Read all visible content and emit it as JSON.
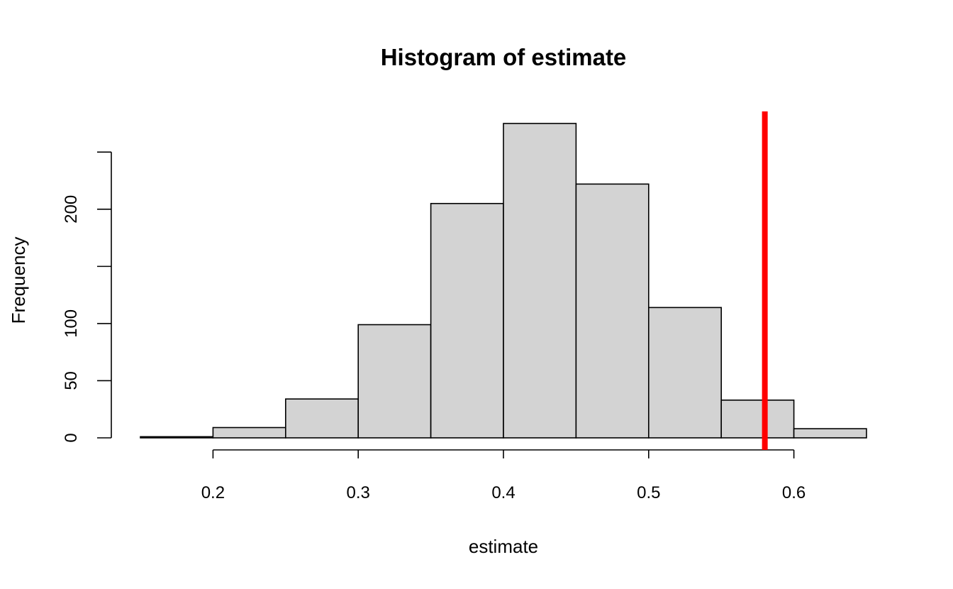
{
  "chart_data": {
    "type": "bar",
    "title": "Histogram of estimate",
    "xlabel": "estimate",
    "ylabel": "Frequency",
    "bins": [
      {
        "start": 0.15,
        "end": 0.2,
        "count": 1
      },
      {
        "start": 0.2,
        "end": 0.25,
        "count": 9
      },
      {
        "start": 0.25,
        "end": 0.3,
        "count": 34
      },
      {
        "start": 0.3,
        "end": 0.35,
        "count": 99
      },
      {
        "start": 0.35,
        "end": 0.4,
        "count": 205
      },
      {
        "start": 0.4,
        "end": 0.45,
        "count": 275
      },
      {
        "start": 0.45,
        "end": 0.5,
        "count": 222
      },
      {
        "start": 0.5,
        "end": 0.55,
        "count": 114
      },
      {
        "start": 0.55,
        "end": 0.6,
        "count": 33
      },
      {
        "start": 0.6,
        "end": 0.65,
        "count": 8
      }
    ],
    "x_ticks": [
      0.2,
      0.3,
      0.4,
      0.5,
      0.6
    ],
    "x_tick_labels": [
      "0.2",
      "0.3",
      "0.4",
      "0.5",
      "0.6"
    ],
    "y_ticks": [
      0,
      50,
      100,
      150,
      200,
      250
    ],
    "y_tick_labels": [
      "0",
      "50",
      "100",
      "",
      "200",
      ""
    ],
    "xlim": [
      0.15,
      0.65
    ],
    "ylim": [
      0,
      275
    ],
    "reference_line": {
      "x": 0.58,
      "color": "#ff0000"
    },
    "bar_color": "#d3d3d3",
    "grid": false
  }
}
